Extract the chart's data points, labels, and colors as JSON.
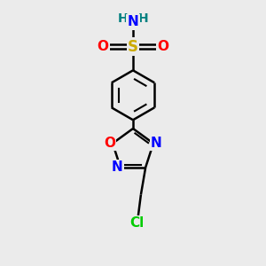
{
  "bg_color": "#ebebeb",
  "atom_colors": {
    "C": "#000000",
    "N": "#0000ff",
    "O": "#ff0000",
    "S": "#ccaa00",
    "Cl": "#00cc00",
    "H": "#008080"
  },
  "bond_color": "#000000",
  "figure_size": [
    3.0,
    3.0
  ],
  "dpi": 100
}
